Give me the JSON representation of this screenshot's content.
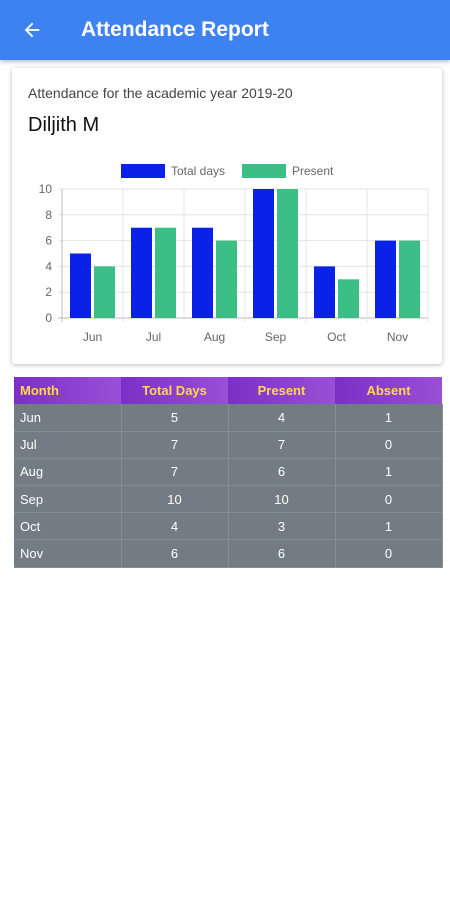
{
  "header": {
    "title": "Attendance Report",
    "back_icon": "arrow-left-icon"
  },
  "card": {
    "subtitle": "Attendance for the academic year 2019-20",
    "student_name": "Diljith M"
  },
  "chart_data": {
    "type": "bar",
    "categories": [
      "Jun",
      "Jul",
      "Aug",
      "Sep",
      "Oct",
      "Nov"
    ],
    "series": [
      {
        "name": "Total days",
        "values": [
          5,
          7,
          7,
          10,
          4,
          6
        ],
        "color": "#0a22e8"
      },
      {
        "name": "Present",
        "values": [
          4,
          7,
          6,
          10,
          3,
          6
        ],
        "color": "#3cbf86"
      }
    ],
    "ylim": [
      0,
      10
    ],
    "yticks": [
      0,
      2,
      4,
      6,
      8,
      10
    ],
    "legend": "top-center",
    "grid": true
  },
  "table": {
    "headers": [
      "Month",
      "Total Days",
      "Present",
      "Absent"
    ],
    "rows": [
      [
        "Jun",
        "5",
        "4",
        "1"
      ],
      [
        "Jul",
        "7",
        "7",
        "0"
      ],
      [
        "Aug",
        "7",
        "6",
        "1"
      ],
      [
        "Sep",
        "10",
        "10",
        "0"
      ],
      [
        "Oct",
        "4",
        "3",
        "1"
      ],
      [
        "Nov",
        "6",
        "6",
        "0"
      ]
    ]
  },
  "colors": {
    "appbar": "#3d82f0",
    "header_text": "#ffd84a",
    "header_bg": "#8a3fd0",
    "row_bg": "#737c85"
  }
}
